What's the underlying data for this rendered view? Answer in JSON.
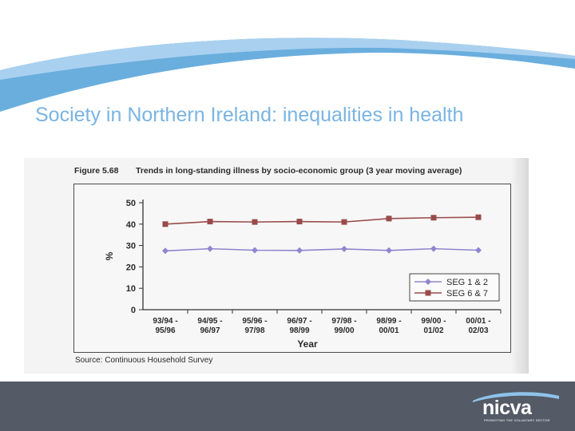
{
  "slide": {
    "title": "Society in Northern Ireland: inequalities in health"
  },
  "figure": {
    "label": "Figure 5.68",
    "title": "Trends in long-standing illness by socio-economic group (3 year moving average)",
    "source": "Source: Continuous Household Survey"
  },
  "logo": {
    "name": "nicva",
    "tagline": "PROMOTING THE VOLUNTARY SECTOR"
  },
  "colors": {
    "title": "#7ab4e2",
    "header_band": "#6aaede",
    "footer": "#545a66",
    "seg12": "#8f86cf",
    "seg67": "#9a4a4a"
  },
  "chart_data": {
    "type": "line",
    "categories": [
      "93/94 - 95/96",
      "94/95 - 96/97",
      "95/96 - 97/98",
      "96/97 - 98/99",
      "97/98 - 99/00",
      "98/99 - 00/01",
      "99/00 - 01/02",
      "00/01 - 02/03"
    ],
    "series": [
      {
        "name": "SEG 1 & 2",
        "values": [
          27.5,
          28.5,
          27.8,
          27.7,
          28.4,
          27.7,
          28.5,
          27.8
        ],
        "marker": "diamond"
      },
      {
        "name": "SEG 6 & 7",
        "values": [
          40,
          41.2,
          41,
          41.2,
          41,
          42.6,
          43,
          43.2
        ],
        "marker": "square"
      }
    ],
    "xlabel": "Year",
    "ylabel": "%",
    "ylim": [
      0,
      50
    ],
    "yticks": [
      0,
      10,
      20,
      30,
      40,
      50
    ],
    "grid": false,
    "legend_position": "bottom-right"
  }
}
